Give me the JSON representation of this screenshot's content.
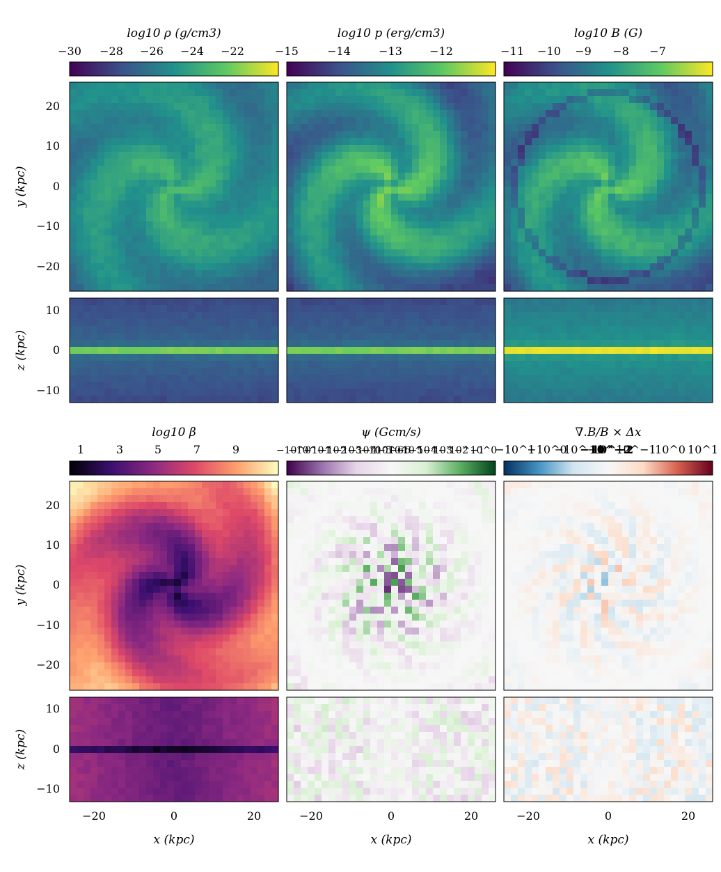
{
  "colormaps": {
    "viridis": [
      "#440154",
      "#3b528b",
      "#21918c",
      "#5ec962",
      "#fde725"
    ],
    "magma": [
      "#000004",
      "#3b0f70",
      "#8c2981",
      "#de4968",
      "#fe9f6d",
      "#fcfdbf"
    ],
    "PRGn": [
      "#40004b",
      "#9970ab",
      "#e7d4e8",
      "#f7f7f7",
      "#d9f0d3",
      "#5aae61",
      "#00441b"
    ],
    "RdBu_r": [
      "#053061",
      "#4393c3",
      "#d1e5f0",
      "#f7f7f7",
      "#fddbc7",
      "#d6604d",
      "#67001f"
    ]
  },
  "chart_data": [
    {
      "type": "heatmap",
      "panel": "face-on and edge-on maps of gas density",
      "colormap": "viridis",
      "colorbar": {
        "label": "log10 ρ (g/cm3)",
        "range": [
          -30,
          -20
        ],
        "ticks": [
          "−30",
          "−28",
          "−26",
          "−24",
          "−22"
        ]
      },
      "x_axis": {
        "label": "x (kpc)",
        "range": [
          -26,
          26
        ],
        "ticks": [
          "−20",
          "0",
          "20"
        ]
      },
      "y_axis": {
        "label": "y (kpc)",
        "range": [
          -26,
          26
        ],
        "ticks": [
          "20",
          "10",
          "0",
          "−10",
          "−20"
        ]
      },
      "z_axis": {
        "label": "z (kpc)",
        "range": [
          -13,
          13
        ],
        "ticks": [
          "10",
          "0",
          "−10"
        ]
      }
    },
    {
      "type": "heatmap",
      "panel": "face-on and edge-on maps of gas pressure",
      "colormap": "viridis",
      "colorbar": {
        "label": "log10 p (erg/cm3)",
        "range": [
          -15,
          -11.5
        ],
        "ticks": [
          "−15",
          "−14",
          "−13",
          "−12"
        ]
      }
    },
    {
      "type": "heatmap",
      "panel": "face-on and edge-on maps of magnetic field strength",
      "colormap": "viridis",
      "colorbar": {
        "label": "log10 B (G)",
        "range": [
          -11,
          -6.3
        ],
        "ticks": [
          "−11",
          "−10",
          "−9",
          "−8",
          "−7"
        ]
      }
    },
    {
      "type": "heatmap",
      "panel": "face-on and edge-on maps of plasma beta",
      "colormap": "magma",
      "colorbar": {
        "label": "log10 β",
        "range": [
          0,
          10.5
        ],
        "ticks": [
          "1",
          "3",
          "5",
          "7",
          "9"
        ]
      }
    },
    {
      "type": "heatmap",
      "panel": "face-on and edge-on maps of divergence cleaning scalar",
      "colormap": "PRGn",
      "scale": "symlog",
      "colorbar": {
        "label": "ψ (Gcm/s)",
        "ticks": [
          "−10^0",
          "−10^−1",
          "−10^−2",
          "−10^−3",
          "−10^−4",
          "−10^−5",
          "−10^−6",
          "10^−6",
          "10^−5",
          "10^−4",
          "10^−3",
          "10^−2",
          "10^−1",
          "10^0"
        ]
      }
    },
    {
      "type": "heatmap",
      "panel": "face-on and edge-on maps of relative divergence error",
      "colormap": "RdBu_r",
      "scale": "symlog",
      "colorbar": {
        "label": "∇.B/B × Δx",
        "ticks": [
          "−10^1",
          "−10^0",
          "−10^−1",
          "−10^−2",
          "10^−2",
          "10^−1",
          "10^0",
          "10^1"
        ]
      },
      "x_axis": {
        "label": "x (kpc)"
      }
    }
  ]
}
